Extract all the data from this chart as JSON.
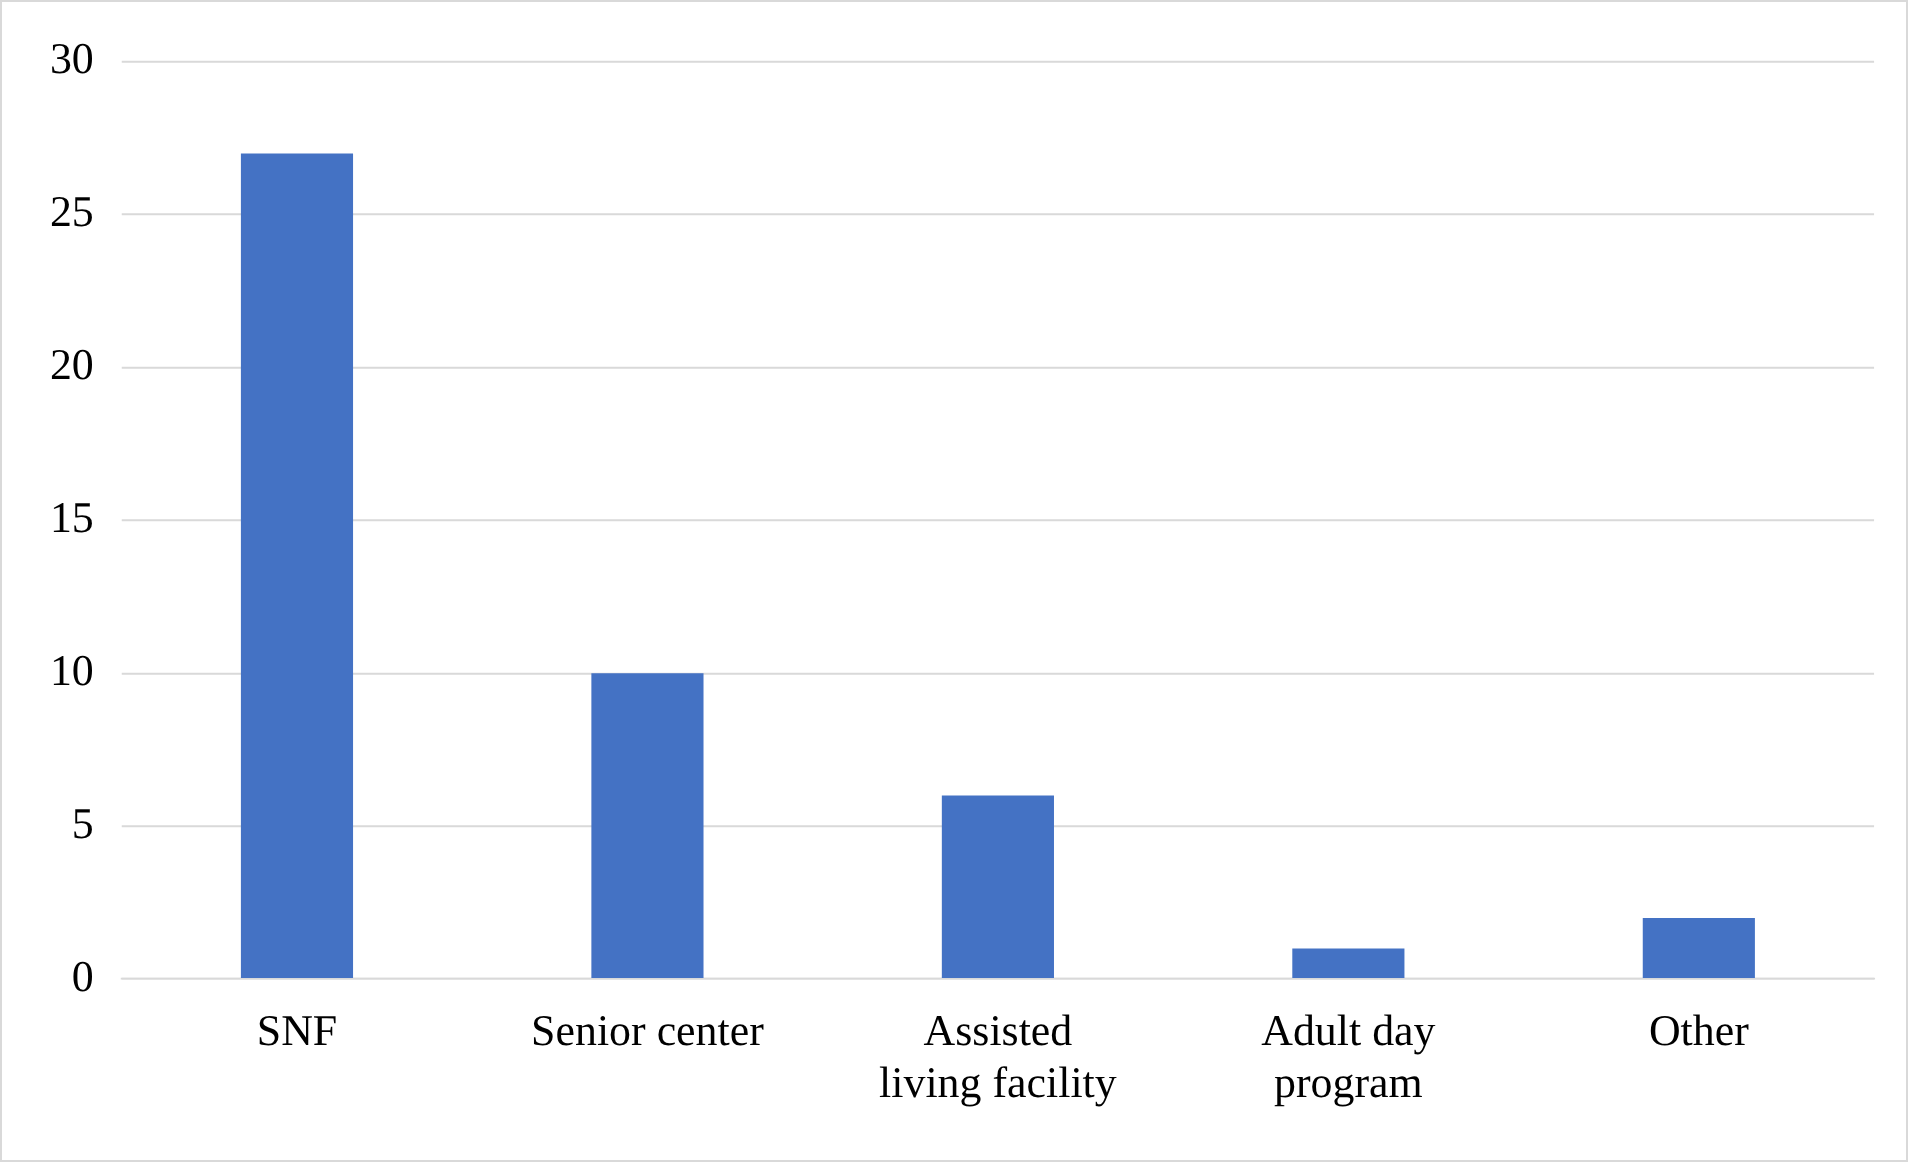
{
  "chart_data": {
    "type": "bar",
    "categories": [
      "SNF",
      "Senior center",
      "Assisted living facility",
      "Adult day program",
      "Other"
    ],
    "values": [
      27,
      10,
      6,
      1,
      2
    ],
    "color": "#4472c4",
    "ylim": [
      0,
      30
    ],
    "yticks": [
      0,
      5,
      10,
      15,
      20,
      25,
      30
    ],
    "grid": "y"
  }
}
